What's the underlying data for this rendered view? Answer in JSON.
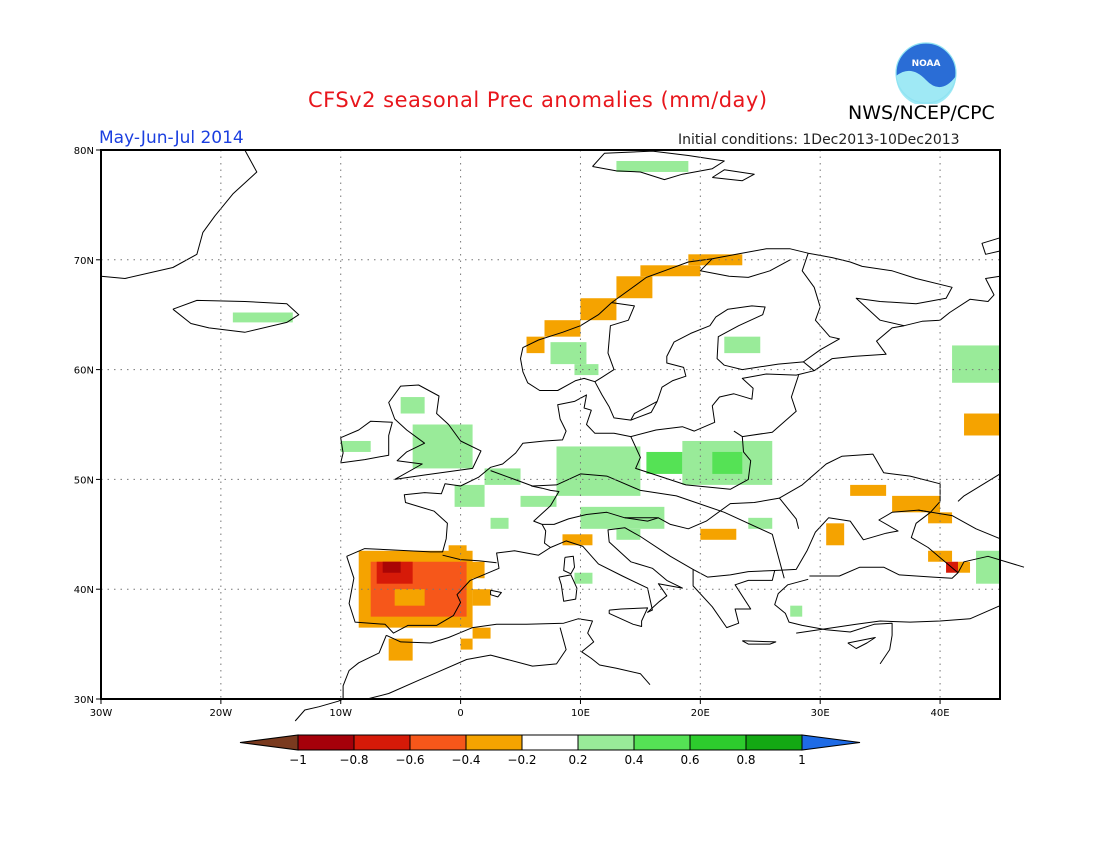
{
  "header": {
    "title": "CFSv2 seasonal Prec anomalies (mm/day)",
    "agency": "NWS/NCEP/CPC",
    "season": "May-Jun-Jul 2014",
    "initial_conditions": "Initial conditions: 1Dec2013-10Dec2013",
    "logo_text": "NOAA"
  },
  "map": {
    "lon_range": [
      -30,
      45
    ],
    "lat_range": [
      30,
      80
    ],
    "lon_ticks": [
      {
        "value": -30,
        "label": "30W"
      },
      {
        "value": -20,
        "label": "20W"
      },
      {
        "value": -10,
        "label": "10W"
      },
      {
        "value": 0,
        "label": "0"
      },
      {
        "value": 10,
        "label": "10E"
      },
      {
        "value": 20,
        "label": "20E"
      },
      {
        "value": 30,
        "label": "30E"
      },
      {
        "value": 40,
        "label": "40E"
      }
    ],
    "lat_ticks": [
      {
        "value": 30,
        "label": "30N"
      },
      {
        "value": 40,
        "label": "40N"
      },
      {
        "value": 50,
        "label": "50N"
      },
      {
        "value": 60,
        "label": "60N"
      },
      {
        "value": 70,
        "label": "70N"
      },
      {
        "value": 80,
        "label": "80N"
      }
    ],
    "grid": "dotted",
    "colors": {
      "lt_green": "#99eb99",
      "green": "#55e255",
      "orange": "#f5a300",
      "red_orange": "#f6571a",
      "red": "#d61a08",
      "dark_red": "#aa0505"
    },
    "anomaly_regions": [
      {
        "name": "Iceland",
        "color": "lt_green",
        "lon": [
          -19,
          -14
        ],
        "lat": [
          64.3,
          65.2
        ]
      },
      {
        "name": "Svalbard",
        "color": "lt_green",
        "lon": [
          13,
          19
        ],
        "lat": [
          78,
          79
        ]
      },
      {
        "name": "Scotland",
        "color": "lt_green",
        "lon": [
          -5,
          -3
        ],
        "lat": [
          56,
          57.5
        ]
      },
      {
        "name": "Ireland",
        "color": "lt_green",
        "lon": [
          -10,
          -7.5
        ],
        "lat": [
          52.5,
          53.5
        ]
      },
      {
        "name": "England",
        "color": "lt_green",
        "lon": [
          -4,
          1
        ],
        "lat": [
          51,
          55
        ]
      },
      {
        "name": "Benelux",
        "color": "lt_green",
        "lon": [
          2,
          5
        ],
        "lat": [
          49.5,
          51
        ]
      },
      {
        "name": "France N",
        "color": "lt_green",
        "lon": [
          -0.5,
          2
        ],
        "lat": [
          47.5,
          49.5
        ]
      },
      {
        "name": "France C",
        "color": "lt_green",
        "lon": [
          2.5,
          4
        ],
        "lat": [
          45.5,
          46.5
        ]
      },
      {
        "name": "Alsace",
        "color": "lt_green",
        "lon": [
          5,
          8
        ],
        "lat": [
          47.5,
          48.5
        ]
      },
      {
        "name": "Germany",
        "color": "lt_green",
        "lon": [
          8,
          15
        ],
        "lat": [
          48.5,
          53
        ]
      },
      {
        "name": "Germany green",
        "color": "green",
        "lon": [
          15.5,
          18.5
        ],
        "lat": [
          50.5,
          52.5
        ]
      },
      {
        "name": "Poland",
        "color": "lt_green",
        "lon": [
          18.5,
          26
        ],
        "lat": [
          49.5,
          53.5
        ]
      },
      {
        "name": "Poland green",
        "color": "green",
        "lon": [
          21,
          23.5
        ],
        "lat": [
          50.5,
          52.5
        ]
      },
      {
        "name": "Alps",
        "color": "lt_green",
        "lon": [
          10,
          17
        ],
        "lat": [
          45.5,
          47.5
        ]
      },
      {
        "name": "Balkans",
        "color": "lt_green",
        "lon": [
          13,
          15
        ],
        "lat": [
          44.5,
          45.5
        ]
      },
      {
        "name": "Carpathians",
        "color": "lt_green",
        "lon": [
          24,
          26
        ],
        "lat": [
          45.5,
          46.5
        ]
      },
      {
        "name": "Sardinia",
        "color": "lt_green",
        "lon": [
          9.5,
          11
        ],
        "lat": [
          40.5,
          41.5
        ]
      },
      {
        "name": "Norway S",
        "color": "lt_green",
        "lon": [
          7.5,
          10.5
        ],
        "lat": [
          60.5,
          62.5
        ]
      },
      {
        "name": "Sweden",
        "color": "lt_green",
        "lon": [
          9.5,
          11.5
        ],
        "lat": [
          59.5,
          60.5
        ]
      },
      {
        "name": "Finland",
        "color": "lt_green",
        "lon": [
          22,
          25
        ],
        "lat": [
          61.5,
          63
        ]
      },
      {
        "name": "Russia NE",
        "color": "lt_green",
        "lon": [
          41,
          45
        ],
        "lat": [
          58.8,
          62.2
        ]
      },
      {
        "name": "Caspian E",
        "color": "lt_green",
        "lon": [
          43,
          45
        ],
        "lat": [
          40.5,
          43.5
        ]
      },
      {
        "name": "Anatolia",
        "color": "lt_green",
        "lon": [
          27.5,
          28.5
        ],
        "lat": [
          37.5,
          38.5
        ]
      },
      {
        "name": "Norway coast 1",
        "color": "orange",
        "lon": [
          5.5,
          7
        ],
        "lat": [
          61.5,
          63
        ]
      },
      {
        "name": "Norway coast 2",
        "color": "orange",
        "lon": [
          7,
          10
        ],
        "lat": [
          63,
          64.5
        ]
      },
      {
        "name": "Norway coast 3",
        "color": "orange",
        "lon": [
          10,
          13
        ],
        "lat": [
          64.5,
          66.5
        ]
      },
      {
        "name": "Norway coast 4",
        "color": "orange",
        "lon": [
          13,
          16
        ],
        "lat": [
          66.5,
          68.5
        ]
      },
      {
        "name": "Norway coast 5",
        "color": "orange",
        "lon": [
          15,
          20
        ],
        "lat": [
          68.5,
          69.5
        ]
      },
      {
        "name": "Norway coast 6",
        "color": "orange",
        "lon": [
          19,
          23.5
        ],
        "lat": [
          69.5,
          70.5
        ]
      },
      {
        "name": "Italy N",
        "color": "orange",
        "lon": [
          8.5,
          11
        ],
        "lat": [
          44,
          45
        ]
      },
      {
        "name": "Croatia",
        "color": "orange",
        "lon": [
          20,
          23
        ],
        "lat": [
          44.5,
          45.5
        ]
      },
      {
        "name": "Black Sea N",
        "color": "orange",
        "lon": [
          30.5,
          32
        ],
        "lat": [
          44,
          46
        ]
      },
      {
        "name": "Ukraine S",
        "color": "orange",
        "lon": [
          32.5,
          35.5
        ],
        "lat": [
          48.5,
          49.5
        ]
      },
      {
        "name": "Russia S",
        "color": "orange",
        "lon": [
          36,
          40
        ],
        "lat": [
          47,
          48.5
        ]
      },
      {
        "name": "Caucasus",
        "color": "orange",
        "lon": [
          39,
          41
        ],
        "lat": [
          46,
          47
        ]
      },
      {
        "name": "Georgia",
        "color": "orange",
        "lon": [
          39,
          41
        ],
        "lat": [
          42.5,
          43.5
        ]
      },
      {
        "name": "Georgia red",
        "color": "red",
        "lon": [
          40.5,
          41.5
        ],
        "lat": [
          41.5,
          42.5
        ]
      },
      {
        "name": "Georgia e",
        "color": "orange",
        "lon": [
          41.5,
          42.5
        ],
        "lat": [
          41.5,
          42.5
        ]
      },
      {
        "name": "Volga",
        "color": "orange",
        "lon": [
          42,
          45
        ],
        "lat": [
          54,
          56
        ]
      },
      {
        "name": "Pyrenees",
        "color": "orange",
        "lon": [
          -1,
          0.5
        ],
        "lat": [
          42,
          44
        ]
      },
      {
        "name": "Catalonia",
        "color": "orange",
        "lon": [
          0.5,
          2
        ],
        "lat": [
          41,
          42.5
        ]
      },
      {
        "name": "Iberia",
        "color": "orange",
        "lon": [
          -8.5,
          1
        ],
        "lat": [
          36.5,
          43.5
        ]
      },
      {
        "name": "Iberia red-orange",
        "color": "red_orange",
        "lon": [
          -7.5,
          0.5
        ],
        "lat": [
          37.5,
          42.5
        ]
      },
      {
        "name": "Iberia center",
        "color": "orange",
        "lon": [
          -5.5,
          -3
        ],
        "lat": [
          38.5,
          40
        ]
      },
      {
        "name": "Iberia red",
        "color": "red",
        "lon": [
          -7,
          -4
        ],
        "lat": [
          40.5,
          42.5
        ]
      },
      {
        "name": "Iberia dark",
        "color": "dark_red",
        "lon": [
          -6.5,
          -5
        ],
        "lat": [
          41.5,
          42.5
        ]
      },
      {
        "name": "Balearic",
        "color": "orange",
        "lon": [
          1,
          2.5
        ],
        "lat": [
          38.5,
          40
        ]
      },
      {
        "name": "Morocco",
        "color": "orange",
        "lon": [
          -6,
          -4
        ],
        "lat": [
          33.5,
          35.5
        ]
      },
      {
        "name": "Algeria",
        "color": "orange",
        "lon": [
          1,
          2.5
        ],
        "lat": [
          35.5,
          36.5
        ]
      },
      {
        "name": "Algeria w",
        "color": "orange",
        "lon": [
          0,
          1
        ],
        "lat": [
          34.5,
          35.5
        ]
      }
    ]
  },
  "legend": {
    "ticks": [
      "−1",
      "−0.8",
      "−0.6",
      "−0.4",
      "−0.2",
      "0.2",
      "0.4",
      "0.6",
      "0.8",
      "1"
    ],
    "colors": [
      "#a5000a",
      "#d61a08",
      "#f6571a",
      "#f5a300",
      "#ffffff",
      "#99eb99",
      "#55e255",
      "#2dcc2d",
      "#13a813"
    ],
    "low_end_color": "#7a3a1f",
    "high_end_color": "#1e6be6"
  }
}
